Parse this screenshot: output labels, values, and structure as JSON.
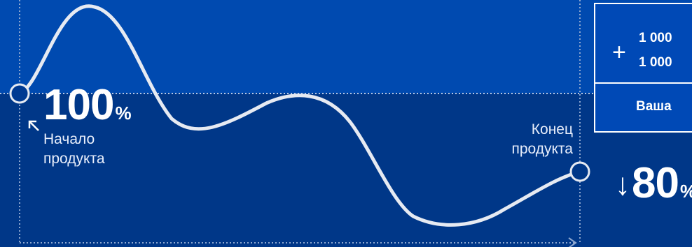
{
  "start": {
    "value": "100",
    "unit": "%",
    "label_line1": "Начало",
    "label_line2": "продукта"
  },
  "end": {
    "arrow": "↓",
    "value": "80",
    "unit": "%",
    "label_line1": "Конец",
    "label_line2": "продукта"
  },
  "info_box": {
    "plus_icon": "+",
    "line1": "1 000",
    "line2": "1 000",
    "caption": "Ваша"
  },
  "colors": {
    "background_top": "#004ab0",
    "background_bottom": "#003788",
    "curve": "#e6eaf2",
    "dotted_line": "#8ea7cf"
  }
}
